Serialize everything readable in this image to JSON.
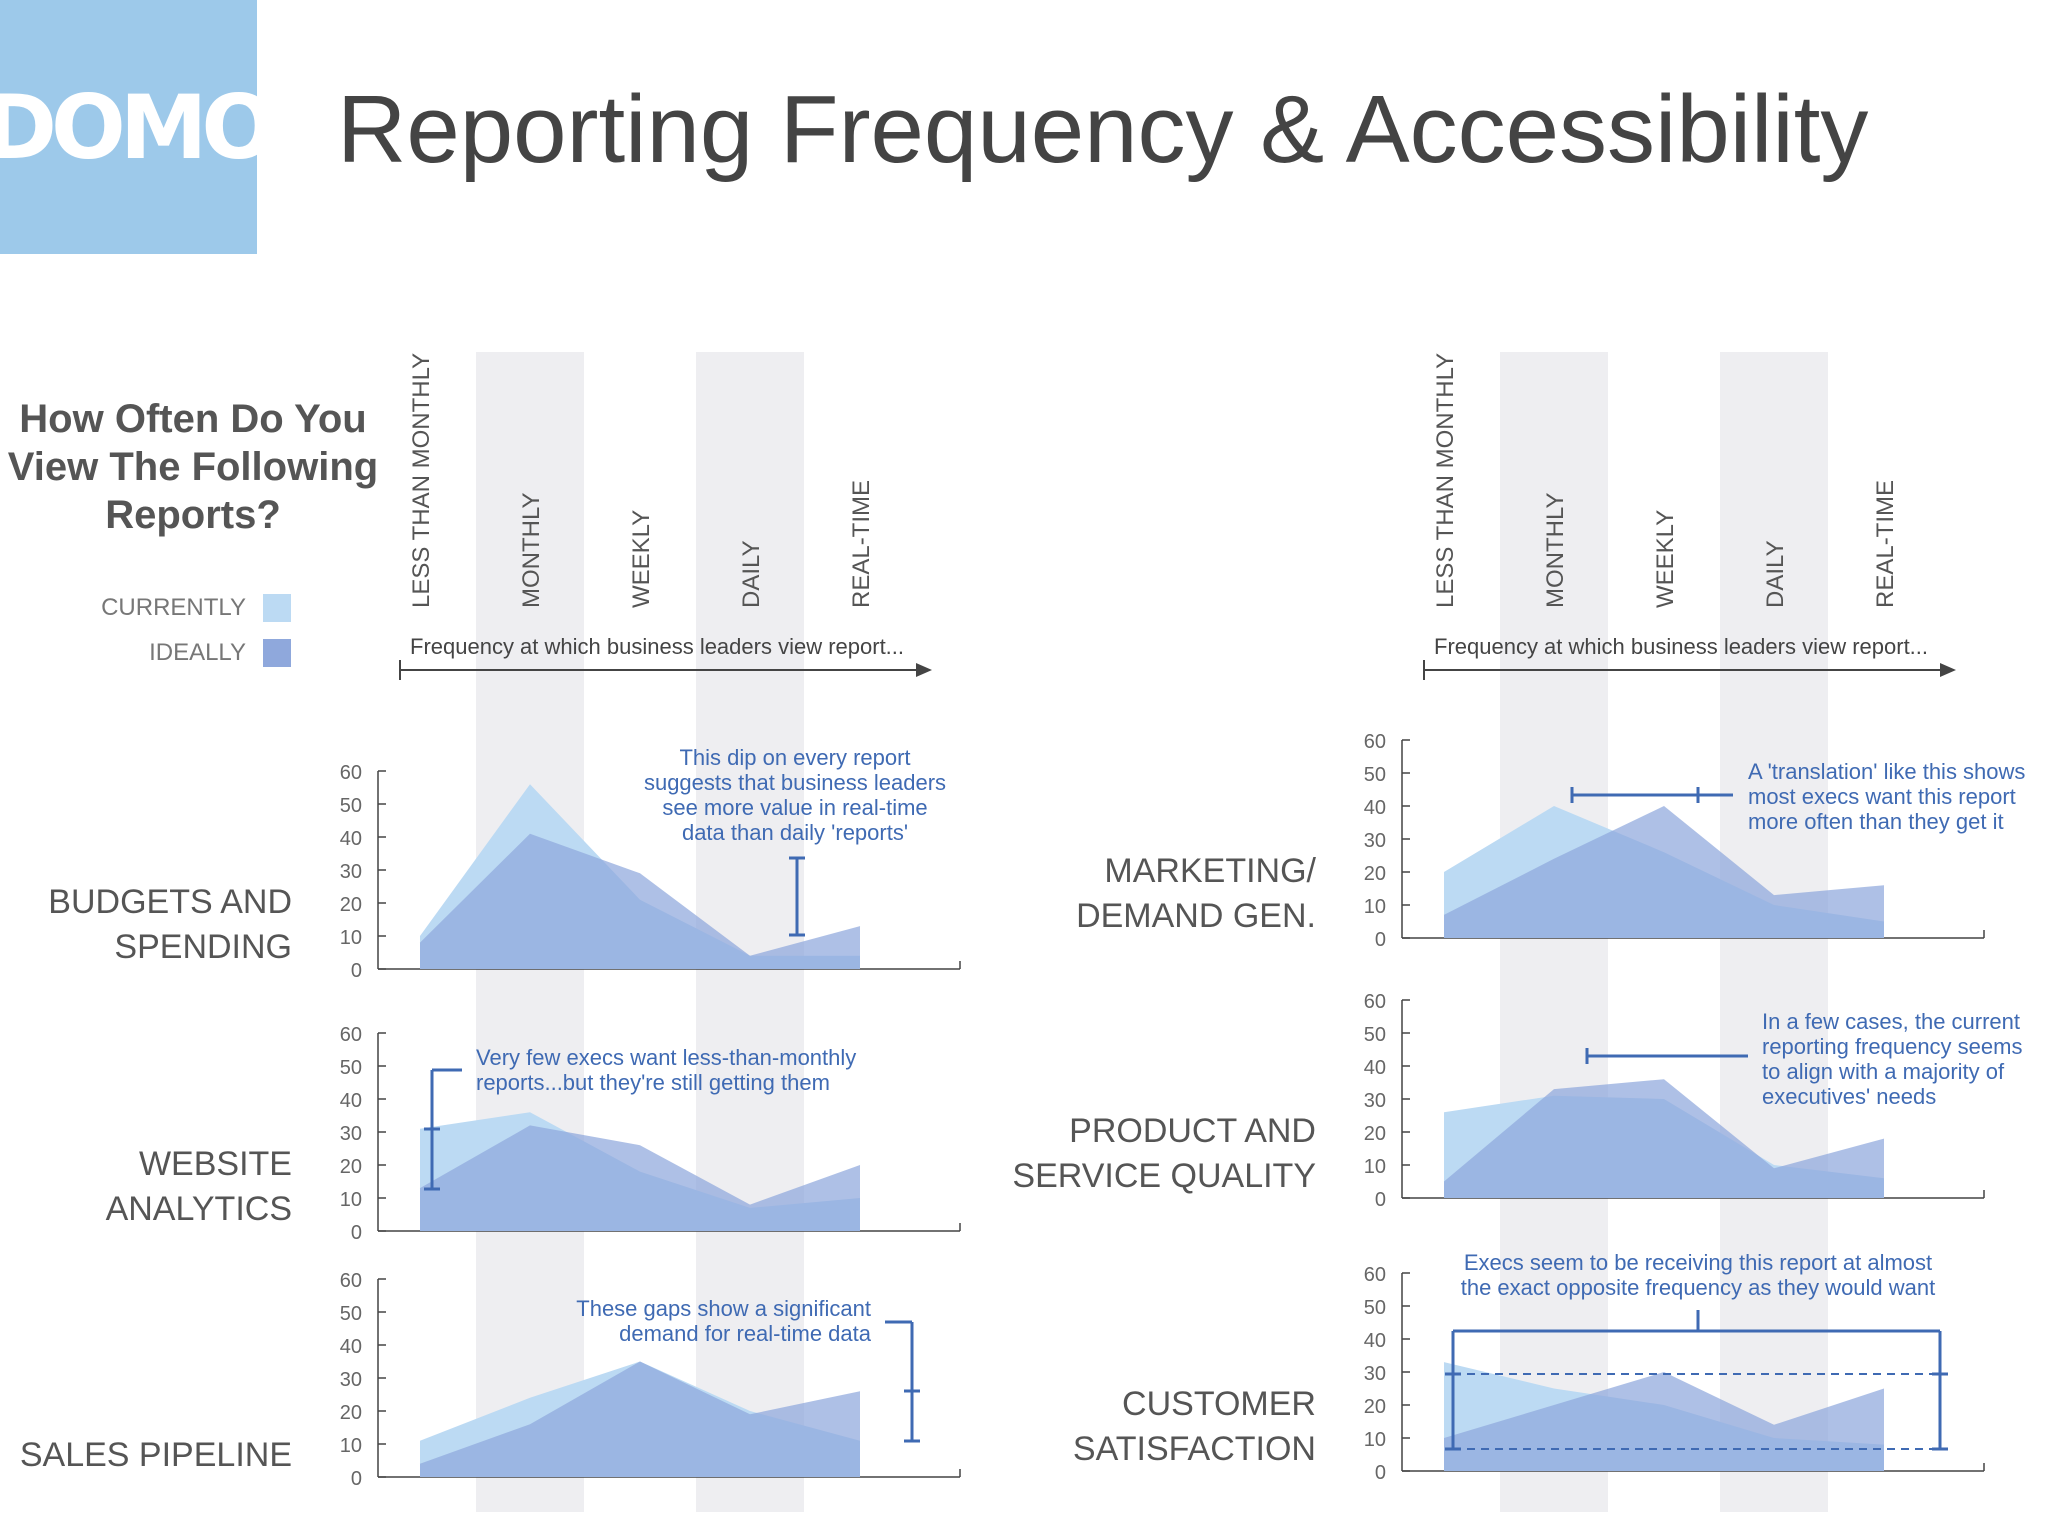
{
  "header": {
    "logo_text": "DOMO",
    "title": "Reporting Frequency & Accessibility"
  },
  "colors": {
    "logo_bg": "#9dc9ea",
    "currently": "#bcdaf3",
    "ideally": "#8fa8dc",
    "annotation": "#3f6ab3",
    "text": "#555555"
  },
  "chart_data": {
    "type": "area",
    "question": [
      "How Often Do You",
      "View The Following",
      "Reports?"
    ],
    "legend": [
      {
        "key": "currently",
        "label": "CURRENTLY"
      },
      {
        "key": "ideally",
        "label": "IDEALLY"
      }
    ],
    "categories": [
      "LESS THAN MONTHLY",
      "MONTHLY",
      "WEEKLY",
      "DAILY",
      "REAL-TIME"
    ],
    "axis_caption": "Frequency at which business leaders view report...",
    "ylim": [
      0,
      60
    ],
    "yticks": [
      "0",
      "10",
      "20",
      "30",
      "40",
      "50",
      "60"
    ],
    "panels": [
      {
        "name": "budgets",
        "label": [
          "BUDGETS AND",
          "SPENDING"
        ],
        "series": [
          {
            "name": "CURRENTLY",
            "values": [
              10,
              56,
              21,
              4,
              4
            ]
          },
          {
            "name": "IDEALLY",
            "values": [
              8,
              41,
              29,
              4,
              13
            ]
          }
        ],
        "annotation": [
          "This dip on every report",
          "suggests that business leaders",
          "see more value in real-time",
          "data than daily 'reports'"
        ]
      },
      {
        "name": "website",
        "label": [
          "WEBSITE",
          "ANALYTICS"
        ],
        "series": [
          {
            "name": "CURRENTLY",
            "values": [
              31,
              36,
              18,
              7,
              10
            ]
          },
          {
            "name": "IDEALLY",
            "values": [
              13,
              32,
              26,
              8,
              20
            ]
          }
        ],
        "annotation": [
          "Very few execs want less-than-monthly",
          "reports...but they're still getting them"
        ]
      },
      {
        "name": "sales",
        "label": [
          "SALES PIPELINE"
        ],
        "series": [
          {
            "name": "CURRENTLY",
            "values": [
              11,
              24,
              35,
              20,
              11
            ]
          },
          {
            "name": "IDEALLY",
            "values": [
              4,
              16,
              35,
              19,
              26
            ]
          }
        ],
        "annotation": [
          "These gaps show a significant",
          "demand for real-time data"
        ]
      },
      {
        "name": "marketing",
        "label": [
          "MARKETING/",
          "DEMAND GEN."
        ],
        "series": [
          {
            "name": "CURRENTLY",
            "values": [
              20,
              40,
              26,
              10,
              5
            ]
          },
          {
            "name": "IDEALLY",
            "values": [
              7,
              24,
              40,
              13,
              16
            ]
          }
        ],
        "annotation": [
          "A 'translation' like this shows",
          "most execs want this report",
          "more often than they get it"
        ]
      },
      {
        "name": "product",
        "label": [
          "PRODUCT AND",
          "SERVICE QUALITY"
        ],
        "series": [
          {
            "name": "CURRENTLY",
            "values": [
              26,
              31,
              30,
              10,
              6
            ]
          },
          {
            "name": "IDEALLY",
            "values": [
              5,
              33,
              36,
              9,
              18
            ]
          }
        ],
        "annotation": [
          "In a few cases, the current",
          "reporting frequency seems",
          "to align with a majority of",
          "executives' needs"
        ]
      },
      {
        "name": "customer",
        "label": [
          "CUSTOMER",
          "SATISFACTION"
        ],
        "series": [
          {
            "name": "CURRENTLY",
            "values": [
              33,
              25,
              20,
              10,
              8
            ]
          },
          {
            "name": "IDEALLY",
            "values": [
              10,
              20,
              30,
              14,
              25
            ]
          }
        ],
        "annotation": [
          "Execs seem to be receiving this report at almost",
          "the exact opposite frequency as they would want"
        ]
      }
    ]
  }
}
